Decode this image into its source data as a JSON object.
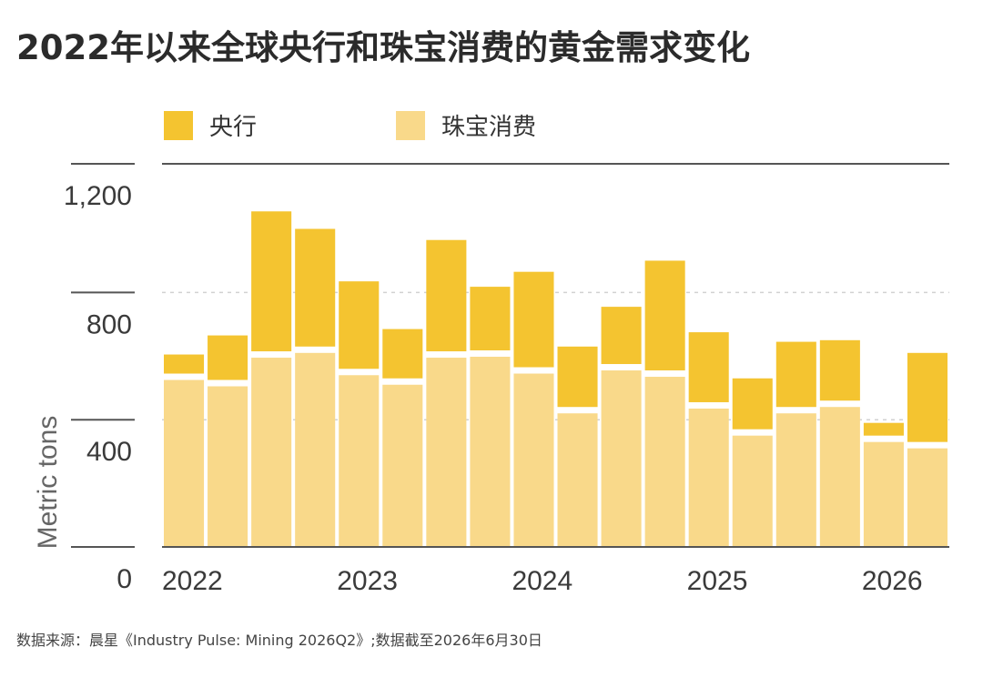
{
  "title": "2022年以来全球央行和珠宝消费的黄金需求变化",
  "source": "数据来源：晨星《Industry Pulse: Mining 2026Q2》;数据截至2026年6月30日",
  "chart_data": {
    "type": "bar",
    "stacked": true,
    "ylabel": "Metric tons",
    "ylim": [
      0,
      1200
    ],
    "yticks": [
      0,
      400,
      800,
      1200
    ],
    "ytick_labels": [
      "0",
      "400",
      "800",
      "1,200"
    ],
    "grid": true,
    "legend_position": "top",
    "x_tick_labels": [
      {
        "label": "2022",
        "index": 0
      },
      {
        "label": "2023",
        "index": 4
      },
      {
        "label": "2024",
        "index": 8
      },
      {
        "label": "2025",
        "index": 12
      },
      {
        "label": "2026",
        "index": 16
      }
    ],
    "categories": [
      "2022Q1",
      "2022Q2",
      "2022Q3",
      "2022Q4",
      "2023Q1",
      "2023Q2",
      "2023Q3",
      "2023Q4",
      "2024Q1",
      "2024Q2",
      "2024Q3",
      "2024Q4",
      "2025Q1",
      "2025Q2",
      "2025Q3",
      "2025Q4",
      "2026Q1",
      "2026Q2"
    ],
    "series": [
      {
        "name": "珠宝消费",
        "color": "#f9d98a",
        "values": [
          525,
          505,
          595,
          610,
          540,
          510,
          595,
          598,
          545,
          420,
          555,
          535,
          435,
          350,
          420,
          440,
          330,
          310
        ]
      },
      {
        "name": "央行",
        "color": "#f4c430",
        "values": [
          60,
          140,
          440,
          370,
          275,
          155,
          350,
          200,
          300,
          190,
          180,
          345,
          220,
          160,
          205,
          190,
          40,
          280
        ]
      }
    ]
  }
}
